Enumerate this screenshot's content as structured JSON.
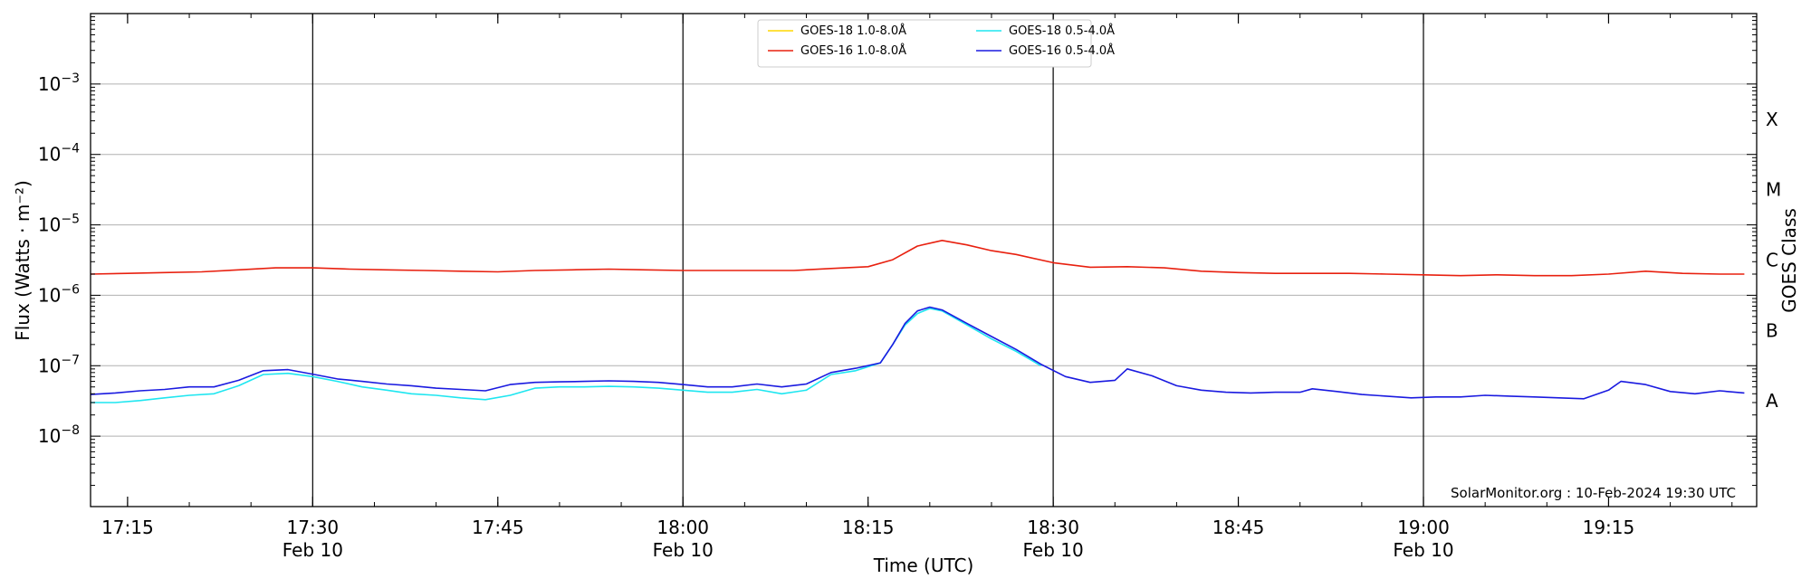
{
  "chart_data": {
    "type": "line",
    "xlabel": "Time (UTC)",
    "ylabel": "Flux (Watts · m⁻²)",
    "y2label": "GOES Class",
    "yscale": "log",
    "ylim": [
      1e-09,
      0.01
    ],
    "xlim": [
      "17:12",
      "19:27"
    ],
    "grid": "horizontal lines at decades",
    "legend": "upper-center",
    "credit": "SolarMonitor.org : 10-Feb-2024 19:30 UTC",
    "x_ticks": [
      {
        "t": "17:15",
        "label": "17:15",
        "sub": ""
      },
      {
        "t": "17:30",
        "label": "17:30",
        "sub": "Feb 10"
      },
      {
        "t": "17:45",
        "label": "17:45",
        "sub": ""
      },
      {
        "t": "18:00",
        "label": "18:00",
        "sub": "Feb 10"
      },
      {
        "t": "18:15",
        "label": "18:15",
        "sub": ""
      },
      {
        "t": "18:30",
        "label": "18:30",
        "sub": "Feb 10"
      },
      {
        "t": "18:45",
        "label": "18:45",
        "sub": ""
      },
      {
        "t": "19:00",
        "label": "19:00",
        "sub": "Feb 10"
      },
      {
        "t": "19:15",
        "label": "19:15",
        "sub": ""
      }
    ],
    "vlines": [
      "17:30",
      "18:00",
      "18:30",
      "19:00"
    ],
    "y_ticks": [
      {
        "exp": "-8",
        "value": 1e-08
      },
      {
        "exp": "-7",
        "value": 1e-07
      },
      {
        "exp": "-6",
        "value": 1e-06
      },
      {
        "exp": "-5",
        "value": 1e-05
      },
      {
        "exp": "-4",
        "value": 0.0001
      },
      {
        "exp": "-3",
        "value": 0.001
      }
    ],
    "goes_classes": [
      {
        "label": "A",
        "value": 3.16e-08
      },
      {
        "label": "B",
        "value": 3.16e-07
      },
      {
        "label": "C",
        "value": 3.16e-06
      },
      {
        "label": "M",
        "value": 3.16e-05
      },
      {
        "label": "X",
        "value": 0.000316
      }
    ],
    "series": [
      {
        "name": "GOES-18 1.0-8.0Å",
        "color": "#ffd700",
        "points": []
      },
      {
        "name": "GOES-16 1.0-8.0Å",
        "color": "#e8200f",
        "points": [
          [
            "17:12",
            2e-06
          ],
          [
            "17:15",
            2.05e-06
          ],
          [
            "17:18",
            2.1e-06
          ],
          [
            "17:21",
            2.15e-06
          ],
          [
            "17:24",
            2.3e-06
          ],
          [
            "17:27",
            2.45e-06
          ],
          [
            "17:30",
            2.45e-06
          ],
          [
            "17:33",
            2.35e-06
          ],
          [
            "17:36",
            2.3e-06
          ],
          [
            "17:39",
            2.25e-06
          ],
          [
            "17:42",
            2.2e-06
          ],
          [
            "17:45",
            2.15e-06
          ],
          [
            "17:48",
            2.25e-06
          ],
          [
            "17:51",
            2.3e-06
          ],
          [
            "17:54",
            2.35e-06
          ],
          [
            "17:57",
            2.3e-06
          ],
          [
            "18:00",
            2.25e-06
          ],
          [
            "18:03",
            2.25e-06
          ],
          [
            "18:06",
            2.25e-06
          ],
          [
            "18:09",
            2.25e-06
          ],
          [
            "18:12",
            2.4e-06
          ],
          [
            "18:15",
            2.55e-06
          ],
          [
            "18:17",
            3.2e-06
          ],
          [
            "18:19",
            5e-06
          ],
          [
            "18:21",
            6e-06
          ],
          [
            "18:23",
            5.2e-06
          ],
          [
            "18:25",
            4.3e-06
          ],
          [
            "18:27",
            3.8e-06
          ],
          [
            "18:30",
            2.9e-06
          ],
          [
            "18:33",
            2.5e-06
          ],
          [
            "18:36",
            2.55e-06
          ],
          [
            "18:39",
            2.45e-06
          ],
          [
            "18:42",
            2.2e-06
          ],
          [
            "18:45",
            2.1e-06
          ],
          [
            "18:48",
            2.05e-06
          ],
          [
            "18:51",
            2.05e-06
          ],
          [
            "18:54",
            2.05e-06
          ],
          [
            "18:57",
            2e-06
          ],
          [
            "19:00",
            1.95e-06
          ],
          [
            "19:03",
            1.9e-06
          ],
          [
            "19:06",
            1.95e-06
          ],
          [
            "19:09",
            1.9e-06
          ],
          [
            "19:12",
            1.9e-06
          ],
          [
            "19:15",
            2e-06
          ],
          [
            "19:18",
            2.2e-06
          ],
          [
            "19:21",
            2.05e-06
          ],
          [
            "19:24",
            2e-06
          ],
          [
            "19:26",
            2e-06
          ]
        ]
      },
      {
        "name": "GOES-18 0.5-4.0Å",
        "color": "#1ee6f0",
        "points": [
          [
            "17:12",
            3e-08
          ],
          [
            "17:14",
            3e-08
          ],
          [
            "17:16",
            3.2e-08
          ],
          [
            "17:18",
            3.5e-08
          ],
          [
            "17:20",
            3.8e-08
          ],
          [
            "17:22",
            4e-08
          ],
          [
            "17:24",
            5.2e-08
          ],
          [
            "17:26",
            7.5e-08
          ],
          [
            "17:28",
            7.8e-08
          ],
          [
            "17:30",
            7e-08
          ],
          [
            "17:32",
            6e-08
          ],
          [
            "17:34",
            5e-08
          ],
          [
            "17:36",
            4.5e-08
          ],
          [
            "17:38",
            4e-08
          ],
          [
            "17:40",
            3.8e-08
          ],
          [
            "17:42",
            3.5e-08
          ],
          [
            "17:44",
            3.3e-08
          ],
          [
            "17:46",
            3.8e-08
          ],
          [
            "17:48",
            4.8e-08
          ],
          [
            "17:50",
            5e-08
          ],
          [
            "17:52",
            5e-08
          ],
          [
            "17:54",
            5.1e-08
          ],
          [
            "17:56",
            5e-08
          ],
          [
            "17:58",
            4.8e-08
          ],
          [
            "18:00",
            4.5e-08
          ],
          [
            "18:02",
            4.2e-08
          ],
          [
            "18:04",
            4.2e-08
          ],
          [
            "18:06",
            4.6e-08
          ],
          [
            "18:08",
            4e-08
          ],
          [
            "18:10",
            4.5e-08
          ],
          [
            "18:12",
            7.5e-08
          ],
          [
            "18:14",
            8.5e-08
          ],
          [
            "18:16",
            1.1e-07
          ],
          [
            "18:17",
            2e-07
          ],
          [
            "18:18",
            3.8e-07
          ],
          [
            "18:19",
            5.5e-07
          ],
          [
            "18:20",
            6.5e-07
          ],
          [
            "18:21",
            6e-07
          ],
          [
            "18:23",
            3.8e-07
          ],
          [
            "18:25",
            2.4e-07
          ],
          [
            "18:27",
            1.6e-07
          ],
          [
            "18:29",
            1e-07
          ]
        ]
      },
      {
        "name": "GOES-16 0.5-4.0Å",
        "color": "#1a1ae0",
        "points": [
          [
            "17:12",
            3.9e-08
          ],
          [
            "17:14",
            4.1e-08
          ],
          [
            "17:16",
            4.4e-08
          ],
          [
            "17:18",
            4.6e-08
          ],
          [
            "17:20",
            5e-08
          ],
          [
            "17:22",
            5e-08
          ],
          [
            "17:24",
            6.2e-08
          ],
          [
            "17:26",
            8.5e-08
          ],
          [
            "17:28",
            8.8e-08
          ],
          [
            "17:30",
            7.6e-08
          ],
          [
            "17:32",
            6.5e-08
          ],
          [
            "17:34",
            6e-08
          ],
          [
            "17:36",
            5.5e-08
          ],
          [
            "17:38",
            5.2e-08
          ],
          [
            "17:40",
            4.8e-08
          ],
          [
            "17:42",
            4.6e-08
          ],
          [
            "17:44",
            4.4e-08
          ],
          [
            "17:46",
            5.4e-08
          ],
          [
            "17:48",
            5.8e-08
          ],
          [
            "17:50",
            5.9e-08
          ],
          [
            "17:52",
            6e-08
          ],
          [
            "17:54",
            6.1e-08
          ],
          [
            "17:56",
            6e-08
          ],
          [
            "17:58",
            5.8e-08
          ],
          [
            "18:00",
            5.4e-08
          ],
          [
            "18:02",
            5e-08
          ],
          [
            "18:04",
            5e-08
          ],
          [
            "18:06",
            5.5e-08
          ],
          [
            "18:08",
            5e-08
          ],
          [
            "18:10",
            5.5e-08
          ],
          [
            "18:12",
            8e-08
          ],
          [
            "18:14",
            9.2e-08
          ],
          [
            "18:16",
            1.1e-07
          ],
          [
            "18:17",
            2e-07
          ],
          [
            "18:18",
            4e-07
          ],
          [
            "18:19",
            6e-07
          ],
          [
            "18:20",
            6.8e-07
          ],
          [
            "18:21",
            6.2e-07
          ],
          [
            "18:23",
            4e-07
          ],
          [
            "18:25",
            2.6e-07
          ],
          [
            "18:27",
            1.7e-07
          ],
          [
            "18:29",
            1.05e-07
          ],
          [
            "18:31",
            7e-08
          ],
          [
            "18:33",
            5.8e-08
          ],
          [
            "18:35",
            6.2e-08
          ],
          [
            "18:36",
            9e-08
          ],
          [
            "18:38",
            7.2e-08
          ],
          [
            "18:40",
            5.2e-08
          ],
          [
            "18:42",
            4.5e-08
          ],
          [
            "18:44",
            4.2e-08
          ],
          [
            "18:46",
            4.1e-08
          ],
          [
            "18:48",
            4.2e-08
          ],
          [
            "18:50",
            4.2e-08
          ],
          [
            "18:51",
            4.7e-08
          ],
          [
            "18:53",
            4.3e-08
          ],
          [
            "18:55",
            3.9e-08
          ],
          [
            "18:57",
            3.7e-08
          ],
          [
            "18:59",
            3.5e-08
          ],
          [
            "19:01",
            3.6e-08
          ],
          [
            "19:03",
            3.6e-08
          ],
          [
            "19:05",
            3.8e-08
          ],
          [
            "19:07",
            3.7e-08
          ],
          [
            "19:09",
            3.6e-08
          ],
          [
            "19:11",
            3.5e-08
          ],
          [
            "19:13",
            3.4e-08
          ],
          [
            "19:15",
            4.5e-08
          ],
          [
            "19:16",
            6e-08
          ],
          [
            "19:18",
            5.4e-08
          ],
          [
            "19:20",
            4.3e-08
          ],
          [
            "19:22",
            4e-08
          ],
          [
            "19:24",
            4.4e-08
          ],
          [
            "19:26",
            4.1e-08
          ]
        ]
      }
    ]
  }
}
